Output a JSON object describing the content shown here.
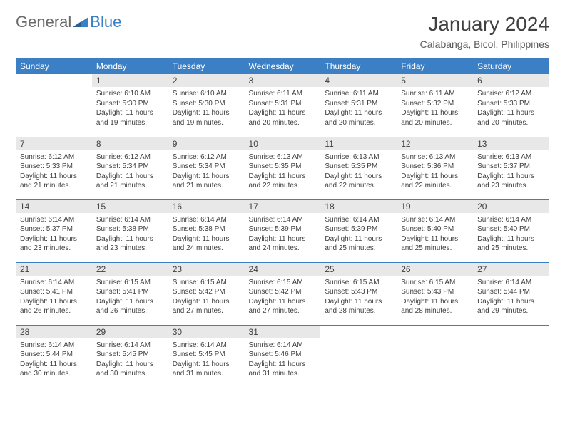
{
  "logo": {
    "text_gray": "General",
    "text_blue": "Blue"
  },
  "title": "January 2024",
  "location": "Calabanga, Bicol, Philippines",
  "colors": {
    "header_bg": "#3b7fc4",
    "header_text": "#ffffff",
    "daynum_bg": "#e8e8e8",
    "body_text": "#404040",
    "rule": "#3b7fc4"
  },
  "day_headers": [
    "Sunday",
    "Monday",
    "Tuesday",
    "Wednesday",
    "Thursday",
    "Friday",
    "Saturday"
  ],
  "weeks": [
    [
      null,
      {
        "n": "1",
        "sr": "6:10 AM",
        "ss": "5:30 PM",
        "dl": "11 hours and 19 minutes."
      },
      {
        "n": "2",
        "sr": "6:10 AM",
        "ss": "5:30 PM",
        "dl": "11 hours and 19 minutes."
      },
      {
        "n": "3",
        "sr": "6:11 AM",
        "ss": "5:31 PM",
        "dl": "11 hours and 20 minutes."
      },
      {
        "n": "4",
        "sr": "6:11 AM",
        "ss": "5:31 PM",
        "dl": "11 hours and 20 minutes."
      },
      {
        "n": "5",
        "sr": "6:11 AM",
        "ss": "5:32 PM",
        "dl": "11 hours and 20 minutes."
      },
      {
        "n": "6",
        "sr": "6:12 AM",
        "ss": "5:33 PM",
        "dl": "11 hours and 20 minutes."
      }
    ],
    [
      {
        "n": "7",
        "sr": "6:12 AM",
        "ss": "5:33 PM",
        "dl": "11 hours and 21 minutes."
      },
      {
        "n": "8",
        "sr": "6:12 AM",
        "ss": "5:34 PM",
        "dl": "11 hours and 21 minutes."
      },
      {
        "n": "9",
        "sr": "6:12 AM",
        "ss": "5:34 PM",
        "dl": "11 hours and 21 minutes."
      },
      {
        "n": "10",
        "sr": "6:13 AM",
        "ss": "5:35 PM",
        "dl": "11 hours and 22 minutes."
      },
      {
        "n": "11",
        "sr": "6:13 AM",
        "ss": "5:35 PM",
        "dl": "11 hours and 22 minutes."
      },
      {
        "n": "12",
        "sr": "6:13 AM",
        "ss": "5:36 PM",
        "dl": "11 hours and 22 minutes."
      },
      {
        "n": "13",
        "sr": "6:13 AM",
        "ss": "5:37 PM",
        "dl": "11 hours and 23 minutes."
      }
    ],
    [
      {
        "n": "14",
        "sr": "6:14 AM",
        "ss": "5:37 PM",
        "dl": "11 hours and 23 minutes."
      },
      {
        "n": "15",
        "sr": "6:14 AM",
        "ss": "5:38 PM",
        "dl": "11 hours and 23 minutes."
      },
      {
        "n": "16",
        "sr": "6:14 AM",
        "ss": "5:38 PM",
        "dl": "11 hours and 24 minutes."
      },
      {
        "n": "17",
        "sr": "6:14 AM",
        "ss": "5:39 PM",
        "dl": "11 hours and 24 minutes."
      },
      {
        "n": "18",
        "sr": "6:14 AM",
        "ss": "5:39 PM",
        "dl": "11 hours and 25 minutes."
      },
      {
        "n": "19",
        "sr": "6:14 AM",
        "ss": "5:40 PM",
        "dl": "11 hours and 25 minutes."
      },
      {
        "n": "20",
        "sr": "6:14 AM",
        "ss": "5:40 PM",
        "dl": "11 hours and 25 minutes."
      }
    ],
    [
      {
        "n": "21",
        "sr": "6:14 AM",
        "ss": "5:41 PM",
        "dl": "11 hours and 26 minutes."
      },
      {
        "n": "22",
        "sr": "6:15 AM",
        "ss": "5:41 PM",
        "dl": "11 hours and 26 minutes."
      },
      {
        "n": "23",
        "sr": "6:15 AM",
        "ss": "5:42 PM",
        "dl": "11 hours and 27 minutes."
      },
      {
        "n": "24",
        "sr": "6:15 AM",
        "ss": "5:42 PM",
        "dl": "11 hours and 27 minutes."
      },
      {
        "n": "25",
        "sr": "6:15 AM",
        "ss": "5:43 PM",
        "dl": "11 hours and 28 minutes."
      },
      {
        "n": "26",
        "sr": "6:15 AM",
        "ss": "5:43 PM",
        "dl": "11 hours and 28 minutes."
      },
      {
        "n": "27",
        "sr": "6:14 AM",
        "ss": "5:44 PM",
        "dl": "11 hours and 29 minutes."
      }
    ],
    [
      {
        "n": "28",
        "sr": "6:14 AM",
        "ss": "5:44 PM",
        "dl": "11 hours and 30 minutes."
      },
      {
        "n": "29",
        "sr": "6:14 AM",
        "ss": "5:45 PM",
        "dl": "11 hours and 30 minutes."
      },
      {
        "n": "30",
        "sr": "6:14 AM",
        "ss": "5:45 PM",
        "dl": "11 hours and 31 minutes."
      },
      {
        "n": "31",
        "sr": "6:14 AM",
        "ss": "5:46 PM",
        "dl": "11 hours and 31 minutes."
      },
      null,
      null,
      null
    ]
  ],
  "labels": {
    "sunrise": "Sunrise:",
    "sunset": "Sunset:",
    "daylight": "Daylight:"
  }
}
